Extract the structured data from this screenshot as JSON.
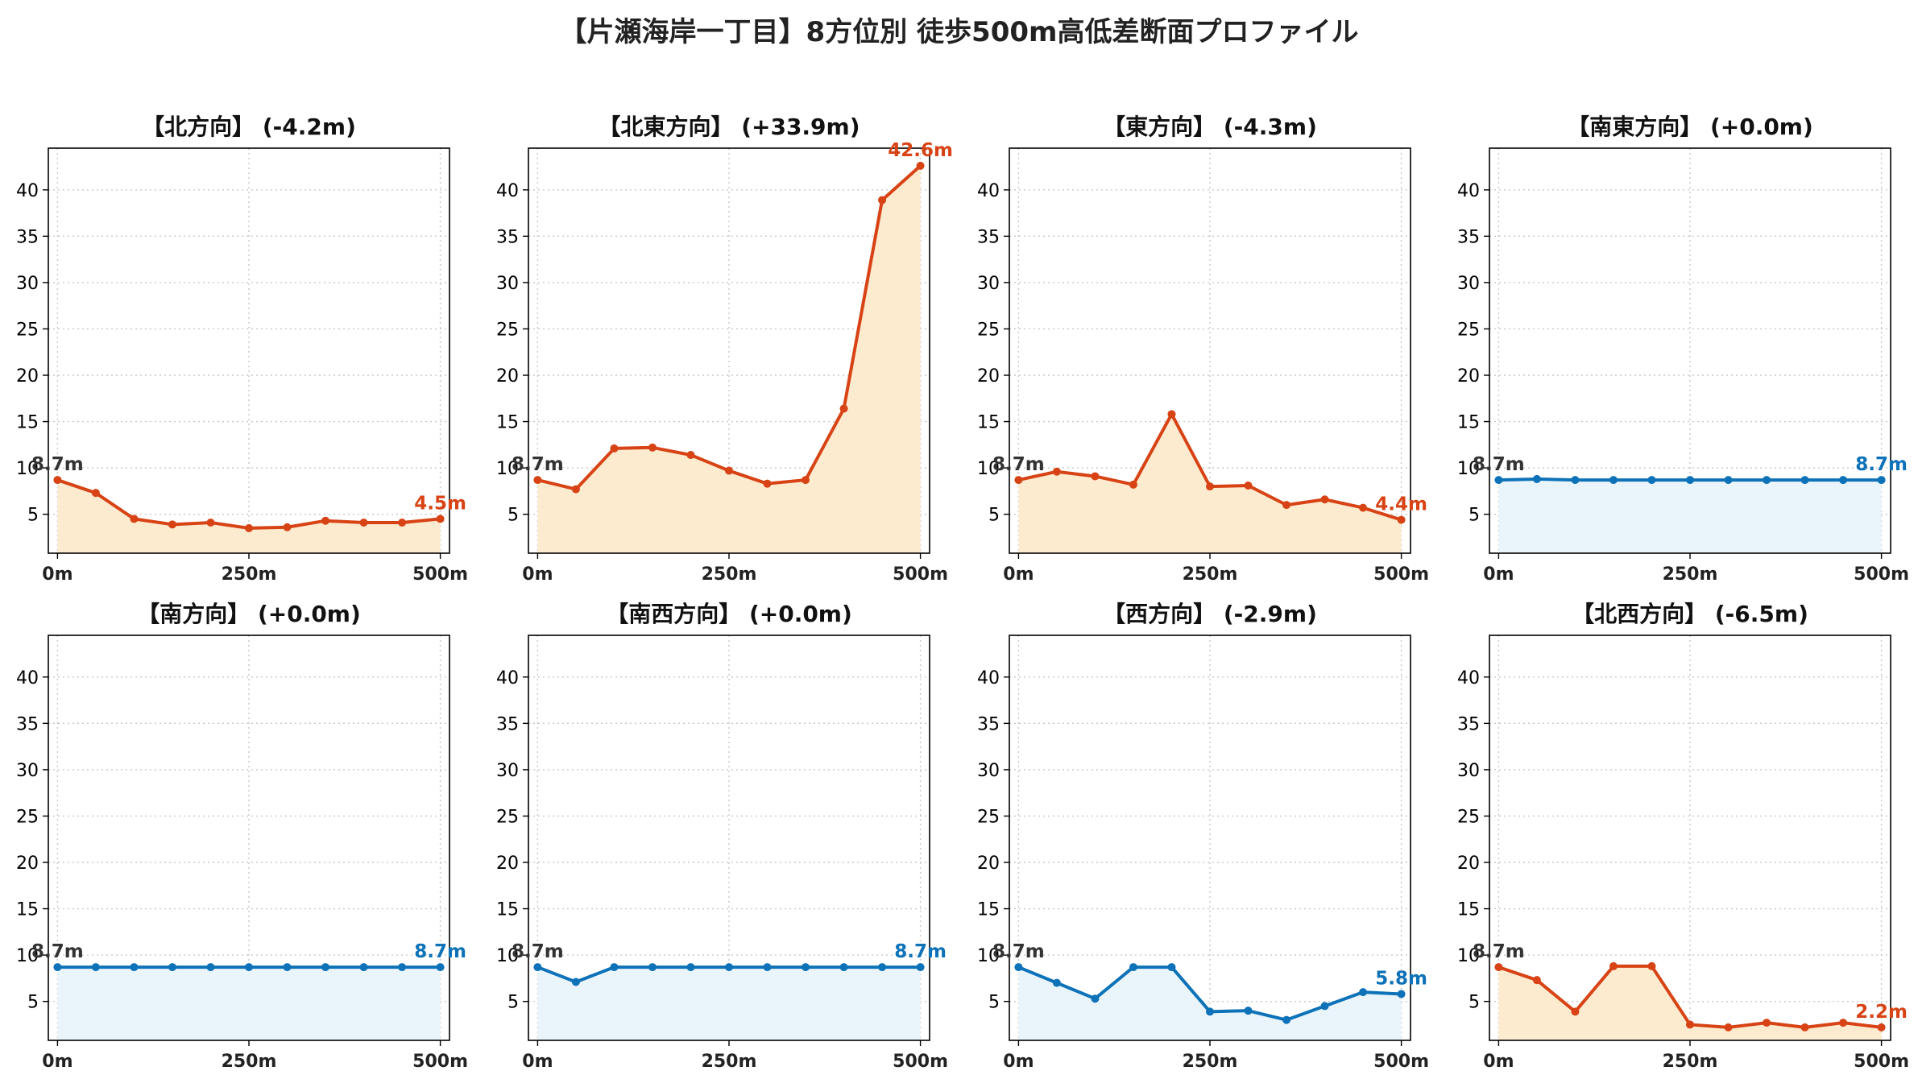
{
  "title": "【片瀬海岸一丁目】8方位別 徒歩500m高低差断面プロファイル",
  "colors": {
    "up": "#d84315",
    "up_fill": "#fdebd0",
    "down": "#0d72b8",
    "down_fill": "#eaf5fb",
    "start_label": "#333333",
    "grid": "#c8c8c8"
  },
  "chart_data": [
    {
      "type": "area",
      "title": "【北方向】 (-4.2m)",
      "color": "up",
      "x": [
        0,
        50,
        100,
        150,
        200,
        250,
        300,
        350,
        400,
        450,
        500
      ],
      "values": [
        8.7,
        7.3,
        4.5,
        3.9,
        4.1,
        3.5,
        3.6,
        4.3,
        4.1,
        4.1,
        4.5
      ],
      "start_label": "8.7m",
      "end_label": "4.5m"
    },
    {
      "type": "area",
      "title": "【北東方向】 (+33.9m)",
      "color": "up",
      "x": [
        0,
        50,
        100,
        150,
        200,
        250,
        300,
        350,
        400,
        450,
        500
      ],
      "values": [
        8.7,
        7.7,
        12.1,
        12.2,
        11.4,
        9.7,
        8.3,
        8.7,
        16.4,
        38.9,
        42.6
      ],
      "start_label": "8.7m",
      "end_label": "42.6m"
    },
    {
      "type": "area",
      "title": "【東方向】 (-4.3m)",
      "color": "up",
      "x": [
        0,
        50,
        100,
        150,
        200,
        250,
        300,
        350,
        400,
        450,
        500
      ],
      "values": [
        8.7,
        9.6,
        9.1,
        8.2,
        15.8,
        8.0,
        8.1,
        6.0,
        6.6,
        5.7,
        4.4
      ],
      "start_label": "8.7m",
      "end_label": "4.4m"
    },
    {
      "type": "area",
      "title": "【南東方向】 (+0.0m)",
      "color": "down",
      "x": [
        0,
        50,
        100,
        150,
        200,
        250,
        300,
        350,
        400,
        450,
        500
      ],
      "values": [
        8.7,
        8.8,
        8.7,
        8.7,
        8.7,
        8.7,
        8.7,
        8.7,
        8.7,
        8.7,
        8.7
      ],
      "start_label": "8.7m",
      "end_label": "8.7m"
    },
    {
      "type": "area",
      "title": "【南方向】 (+0.0m)",
      "color": "down",
      "x": [
        0,
        50,
        100,
        150,
        200,
        250,
        300,
        350,
        400,
        450,
        500
      ],
      "values": [
        8.7,
        8.7,
        8.7,
        8.7,
        8.7,
        8.7,
        8.7,
        8.7,
        8.7,
        8.7,
        8.7
      ],
      "start_label": "8.7m",
      "end_label": "8.7m"
    },
    {
      "type": "area",
      "title": "【南西方向】 (+0.0m)",
      "color": "down",
      "x": [
        0,
        50,
        100,
        150,
        200,
        250,
        300,
        350,
        400,
        450,
        500
      ],
      "values": [
        8.7,
        7.1,
        8.7,
        8.7,
        8.7,
        8.7,
        8.7,
        8.7,
        8.7,
        8.7,
        8.7
      ],
      "start_label": "8.7m",
      "end_label": "8.7m"
    },
    {
      "type": "area",
      "title": "【西方向】 (-2.9m)",
      "color": "down",
      "x": [
        0,
        50,
        100,
        150,
        200,
        250,
        300,
        350,
        400,
        450,
        500
      ],
      "values": [
        8.7,
        7.0,
        5.3,
        8.7,
        8.7,
        3.9,
        4.0,
        3.0,
        4.5,
        6.0,
        5.8
      ],
      "start_label": "8.7m",
      "end_label": "5.8m"
    },
    {
      "type": "area",
      "title": "【北西方向】 (-6.5m)",
      "color": "up",
      "x": [
        0,
        50,
        100,
        150,
        200,
        250,
        300,
        350,
        400,
        450,
        500
      ],
      "values": [
        8.7,
        7.3,
        3.9,
        8.8,
        8.8,
        2.5,
        2.2,
        2.7,
        2.2,
        2.7,
        2.2
      ],
      "start_label": "8.7m",
      "end_label": "2.2m"
    }
  ],
  "axes": {
    "xlim": [
      -12,
      512
    ],
    "ylim": [
      0.8,
      44.5
    ],
    "yticks": [
      5,
      10,
      15,
      20,
      25,
      30,
      35,
      40
    ],
    "ytick_labels": [
      "5",
      "10",
      "15",
      "20",
      "25",
      "30",
      "35",
      "40"
    ],
    "xticks": [
      0,
      250,
      500
    ],
    "xtick_labels": [
      "0m",
      "250m",
      "500m"
    ],
    "grid": true
  }
}
